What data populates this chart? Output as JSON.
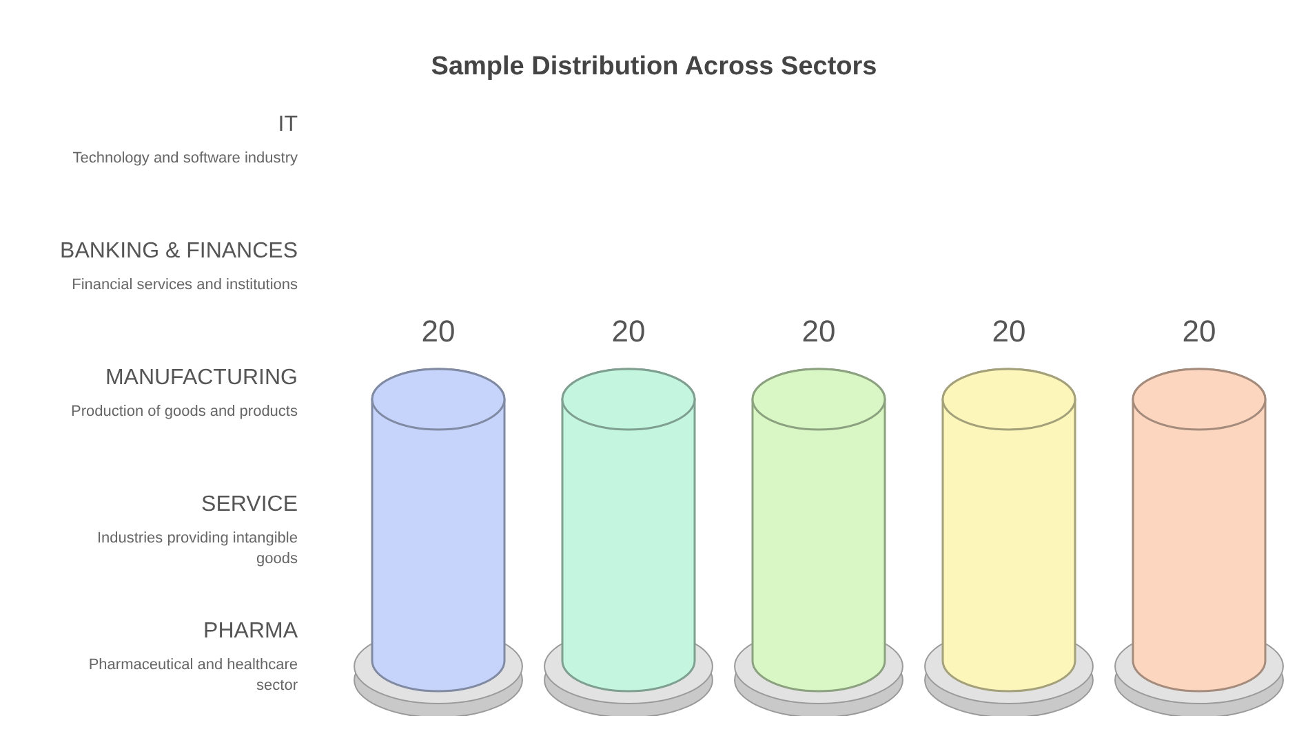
{
  "chart_data": {
    "type": "bar",
    "title": "Sample Distribution Across Sectors",
    "categories": [
      null,
      null,
      null,
      null,
      null
    ],
    "values": [
      20,
      20,
      20,
      20,
      20
    ],
    "colors": [
      "#c6d4fb",
      "#c3f5df",
      "#d8f7c4",
      "#fcf6bb",
      "#fcd6bf"
    ],
    "annotations": [
      "IT",
      "Technology and software industry",
      "BANKING & FINANCES",
      "Financial services and institutions",
      "MANUFACTURING",
      "Production of goods and products",
      "SERVICE",
      "Industries providing intangible goods",
      "PHARMA",
      "Pharmaceutical and healthcare sector"
    ],
    "data_labels": true,
    "tick_labels": false,
    "grid": false,
    "legend": false
  }
}
